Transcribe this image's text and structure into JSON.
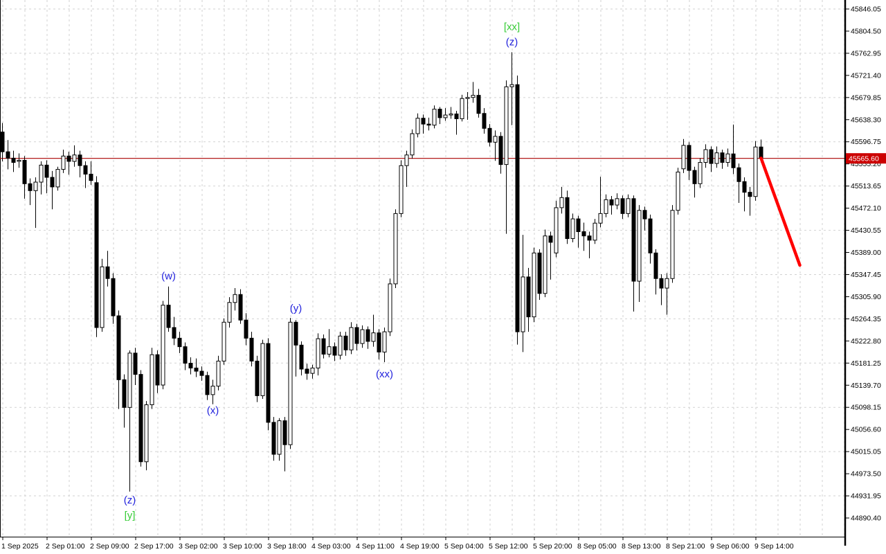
{
  "window": {
    "background": "#ffffff"
  },
  "colors": {
    "grid": "#d2d2d2",
    "axis_line": "#000000",
    "candle_up_fill": "#ffffff",
    "candle_down_fill": "#000000",
    "candle_border": "#000000",
    "price_line": "#aa0000",
    "price_tag_bg": "#cc0000",
    "price_tag_text": "#ffffff",
    "trendline": "#ff0000",
    "wave_blue": "#2222dd",
    "wave_green": "#35cc35",
    "axis_text": "#000000"
  },
  "chart_data": {
    "type": "candlestick",
    "title": "",
    "timeframe_hint": "hourly candles",
    "price_axis": {
      "current_price_label": "45565.60",
      "current_price": 45565.6,
      "tick_step": 41.55,
      "tick_labels": [
        "45846.05",
        "45804.50",
        "45762.95",
        "45721.40",
        "45679.85",
        "45638.30",
        "45596.75",
        "45555.20",
        "45513.65",
        "45472.10",
        "45430.55",
        "45389.00",
        "45347.45",
        "45305.90",
        "45264.35",
        "45222.80",
        "45181.25",
        "45139.70",
        "45098.15",
        "45056.60",
        "45015.05",
        "44973.50",
        "44931.95",
        "44890.40"
      ]
    },
    "time_axis": {
      "labels": [
        "1 Sep 2025",
        "2 Sep 01:00",
        "2 Sep 09:00",
        "2 Sep 17:00",
        "3 Sep 02:00",
        "3 Sep 10:00",
        "3 Sep 18:00",
        "4 Sep 03:00",
        "4 Sep 11:00",
        "4 Sep 19:00",
        "5 Sep 04:00",
        "5 Sep 12:00",
        "5 Sep 20:00",
        "8 Sep 05:00",
        "8 Sep 13:00",
        "8 Sep 21:00",
        "9 Sep 06:00",
        "9 Sep 14:00"
      ],
      "candles_per_label": 8
    },
    "price_line_value": 45565.6,
    "trendline": {
      "from": {
        "index": 137,
        "price": 45566
      },
      "to": {
        "index": 144,
        "price": 45365
      }
    },
    "annotations": [
      {
        "text": "(w)",
        "color": "#2222dd",
        "index": 30,
        "price": 45325,
        "pos": "above",
        "gap": 14
      },
      {
        "text": "(x)",
        "color": "#2222dd",
        "index": 38,
        "price": 45104,
        "pos": "below",
        "gap": 10
      },
      {
        "text": "(y)",
        "color": "#2222dd",
        "index": 53,
        "price": 45262,
        "pos": "above",
        "gap": 16
      },
      {
        "text": "(z)",
        "color": "#2222dd",
        "index": 23,
        "price": 44940,
        "pos": "below",
        "gap": 13
      },
      {
        "text": "[y]",
        "color": "#35cc35",
        "index": 23,
        "price": 44940,
        "pos": "below",
        "gap": 35
      },
      {
        "text": "(xx)",
        "color": "#2222dd",
        "index": 69,
        "price": 45183,
        "pos": "below",
        "gap": 18
      },
      {
        "text": "(z)",
        "color": "#2222dd",
        "index": 92,
        "price": 45765,
        "pos": "above",
        "gap": 14
      },
      {
        "text": "[xx]",
        "color": "#35cc35",
        "index": 92,
        "price": 45765,
        "pos": "above",
        "gap": 36
      }
    ],
    "candles": [
      [
        45615,
        45632,
        45560,
        45578
      ],
      [
        45578,
        45600,
        45545,
        45566
      ],
      [
        45566,
        45580,
        45540,
        45558
      ],
      [
        45560,
        45575,
        45548,
        45562
      ],
      [
        45562,
        45570,
        45490,
        45518
      ],
      [
        45518,
        45528,
        45478,
        45505
      ],
      [
        45505,
        45530,
        45435,
        45521
      ],
      [
        45521,
        45560,
        45498,
        45553
      ],
      [
        45553,
        45562,
        45500,
        45530
      ],
      [
        45530,
        45542,
        45470,
        45512
      ],
      [
        45512,
        45550,
        45505,
        45545
      ],
      [
        45545,
        45582,
        45538,
        45570
      ],
      [
        45570,
        45578,
        45535,
        45560
      ],
      [
        45560,
        45590,
        45550,
        45572
      ],
      [
        45572,
        45580,
        45530,
        45552
      ],
      [
        45552,
        45560,
        45510,
        45536
      ],
      [
        45536,
        45560,
        45516,
        45524
      ],
      [
        45520,
        45532,
        45230,
        45248
      ],
      [
        45248,
        45377,
        45240,
        45362
      ],
      [
        45362,
        45392,
        45325,
        45340
      ],
      [
        45340,
        45350,
        45255,
        45270
      ],
      [
        45270,
        45280,
        45095,
        45150
      ],
      [
        45150,
        45160,
        45060,
        45098
      ],
      [
        45098,
        45205,
        44940,
        45200
      ],
      [
        45200,
        45210,
        45140,
        45160
      ],
      [
        45160,
        45168,
        44987,
        44996
      ],
      [
        44996,
        45110,
        44980,
        45103
      ],
      [
        45103,
        45210,
        45095,
        45197
      ],
      [
        45197,
        45205,
        45125,
        45140
      ],
      [
        45140,
        45298,
        45132,
        45290
      ],
      [
        45290,
        45325,
        45240,
        45248
      ],
      [
        45248,
        45268,
        45215,
        45228
      ],
      [
        45228,
        45240,
        45200,
        45212
      ],
      [
        45212,
        45220,
        45168,
        45181
      ],
      [
        45181,
        45192,
        45160,
        45172
      ],
      [
        45172,
        45190,
        45155,
        45166
      ],
      [
        45166,
        45175,
        45148,
        45158
      ],
      [
        45158,
        45165,
        45112,
        45122
      ],
      [
        45122,
        45150,
        45104,
        45138
      ],
      [
        45138,
        45195,
        45130,
        45185
      ],
      [
        45185,
        45265,
        45178,
        45258
      ],
      [
        45258,
        45305,
        45248,
        45295
      ],
      [
        45295,
        45322,
        45280,
        45310
      ],
      [
        45310,
        45320,
        45255,
        45262
      ],
      [
        45262,
        45275,
        45215,
        45228
      ],
      [
        45228,
        45240,
        45175,
        45185
      ],
      [
        45185,
        45195,
        45108,
        45120
      ],
      [
        45120,
        45225,
        45114,
        45218
      ],
      [
        45218,
        45228,
        45055,
        45070
      ],
      [
        45070,
        45080,
        44998,
        45010
      ],
      [
        45010,
        45078,
        44998,
        45073
      ],
      [
        45073,
        45080,
        44978,
        45028
      ],
      [
        45028,
        45266,
        45020,
        45258
      ],
      [
        45258,
        45262,
        45156,
        45215
      ],
      [
        45215,
        45222,
        45158,
        45170
      ],
      [
        45170,
        45180,
        45150,
        45162
      ],
      [
        45162,
        45178,
        45152,
        45172
      ],
      [
        45172,
        45237,
        45158,
        45227
      ],
      [
        45227,
        45235,
        45190,
        45198
      ],
      [
        45198,
        45245,
        45192,
        45212
      ],
      [
        45212,
        45220,
        45185,
        45196
      ],
      [
        45196,
        45240,
        45188,
        45232
      ],
      [
        45232,
        45240,
        45195,
        45206
      ],
      [
        45206,
        45258,
        45198,
        45248
      ],
      [
        45248,
        45255,
        45205,
        45218
      ],
      [
        45218,
        45252,
        45210,
        45244
      ],
      [
        45244,
        45250,
        45208,
        45222
      ],
      [
        45222,
        45272,
        45212,
        45238
      ],
      [
        45238,
        45245,
        45188,
        45202
      ],
      [
        45202,
        45248,
        45183,
        45240
      ],
      [
        45240,
        45340,
        45232,
        45330
      ],
      [
        45330,
        45470,
        45322,
        45462
      ],
      [
        45462,
        45562,
        45455,
        45552
      ],
      [
        45552,
        45580,
        45512,
        45572
      ],
      [
        45572,
        45620,
        45565,
        45612
      ],
      [
        45612,
        45650,
        45605,
        45641
      ],
      [
        45641,
        45648,
        45612,
        45630
      ],
      [
        45630,
        45642,
        45618,
        45628
      ],
      [
        45628,
        45665,
        45622,
        45658
      ],
      [
        45658,
        45662,
        45630,
        45642
      ],
      [
        45642,
        45660,
        45636,
        45647
      ],
      [
        45647,
        45662,
        45640,
        45649
      ],
      [
        45649,
        45655,
        45610,
        45640
      ],
      [
        45640,
        45685,
        45635,
        45678
      ],
      [
        45678,
        45690,
        45638,
        45680
      ],
      [
        45680,
        45709,
        45670,
        45684
      ],
      [
        45684,
        45696,
        45642,
        45650
      ],
      [
        45650,
        45660,
        45612,
        45622
      ],
      [
        45622,
        45630,
        45588,
        45596
      ],
      [
        45596,
        45618,
        45561,
        45607
      ],
      [
        45607,
        45615,
        45537,
        45554
      ],
      [
        45554,
        45712,
        45424,
        45700
      ],
      [
        45700,
        45765,
        45628,
        45704
      ],
      [
        45704,
        45721,
        45216,
        45240
      ],
      [
        45240,
        45422,
        45202,
        45343
      ],
      [
        45343,
        45360,
        45240,
        45268
      ],
      [
        45268,
        45398,
        45258,
        45388
      ],
      [
        45388,
        45395,
        45300,
        45312
      ],
      [
        45312,
        45432,
        45305,
        45420
      ],
      [
        45420,
        45428,
        45338,
        45408
      ],
      [
        45388,
        45486,
        45380,
        45473
      ],
      [
        45473,
        45512,
        45462,
        45492
      ],
      [
        45492,
        45505,
        45405,
        45415
      ],
      [
        45415,
        45462,
        45408,
        45452
      ],
      [
        45452,
        45458,
        45398,
        45428
      ],
      [
        45428,
        45445,
        45392,
        45420
      ],
      [
        45420,
        45428,
        45378,
        45412
      ],
      [
        45412,
        45452,
        45405,
        45444
      ],
      [
        45444,
        45531,
        45436,
        45462
      ],
      [
        45462,
        45498,
        45455,
        45488
      ],
      [
        45488,
        45495,
        45460,
        45478
      ],
      [
        45478,
        45500,
        45470,
        45490
      ],
      [
        45490,
        45496,
        45452,
        45462
      ],
      [
        45462,
        45498,
        45455,
        45490
      ],
      [
        45490,
        45496,
        45278,
        45335
      ],
      [
        45335,
        45478,
        45296,
        45468
      ],
      [
        45468,
        45475,
        45430,
        45452
      ],
      [
        45452,
        45460,
        45368,
        45388
      ],
      [
        45388,
        45395,
        45310,
        45340
      ],
      [
        45340,
        45348,
        45290,
        45322
      ],
      [
        45322,
        45350,
        45272,
        45340
      ],
      [
        45340,
        45478,
        45332,
        45468
      ],
      [
        45468,
        45548,
        45460,
        45540
      ],
      [
        45546,
        45602,
        45538,
        45590
      ],
      [
        45590,
        45596,
        45525,
        45543
      ],
      [
        45543,
        45550,
        45492,
        45518
      ],
      [
        45518,
        45566,
        45510,
        45558
      ],
      [
        45558,
        45592,
        45548,
        45582
      ],
      [
        45582,
        45588,
        45540,
        45556
      ],
      [
        45556,
        45588,
        45548,
        45576
      ],
      [
        45576,
        45582,
        45546,
        45558
      ],
      [
        45558,
        45584,
        45550,
        45574
      ],
      [
        45574,
        45629,
        45536,
        45548
      ],
      [
        45548,
        45556,
        45482,
        45522
      ],
      [
        45522,
        45530,
        45466,
        45502
      ],
      [
        45502,
        45512,
        45458,
        45494
      ],
      [
        45494,
        45598,
        45486,
        45587
      ],
      [
        45587,
        45601,
        45558,
        45566
      ]
    ]
  }
}
